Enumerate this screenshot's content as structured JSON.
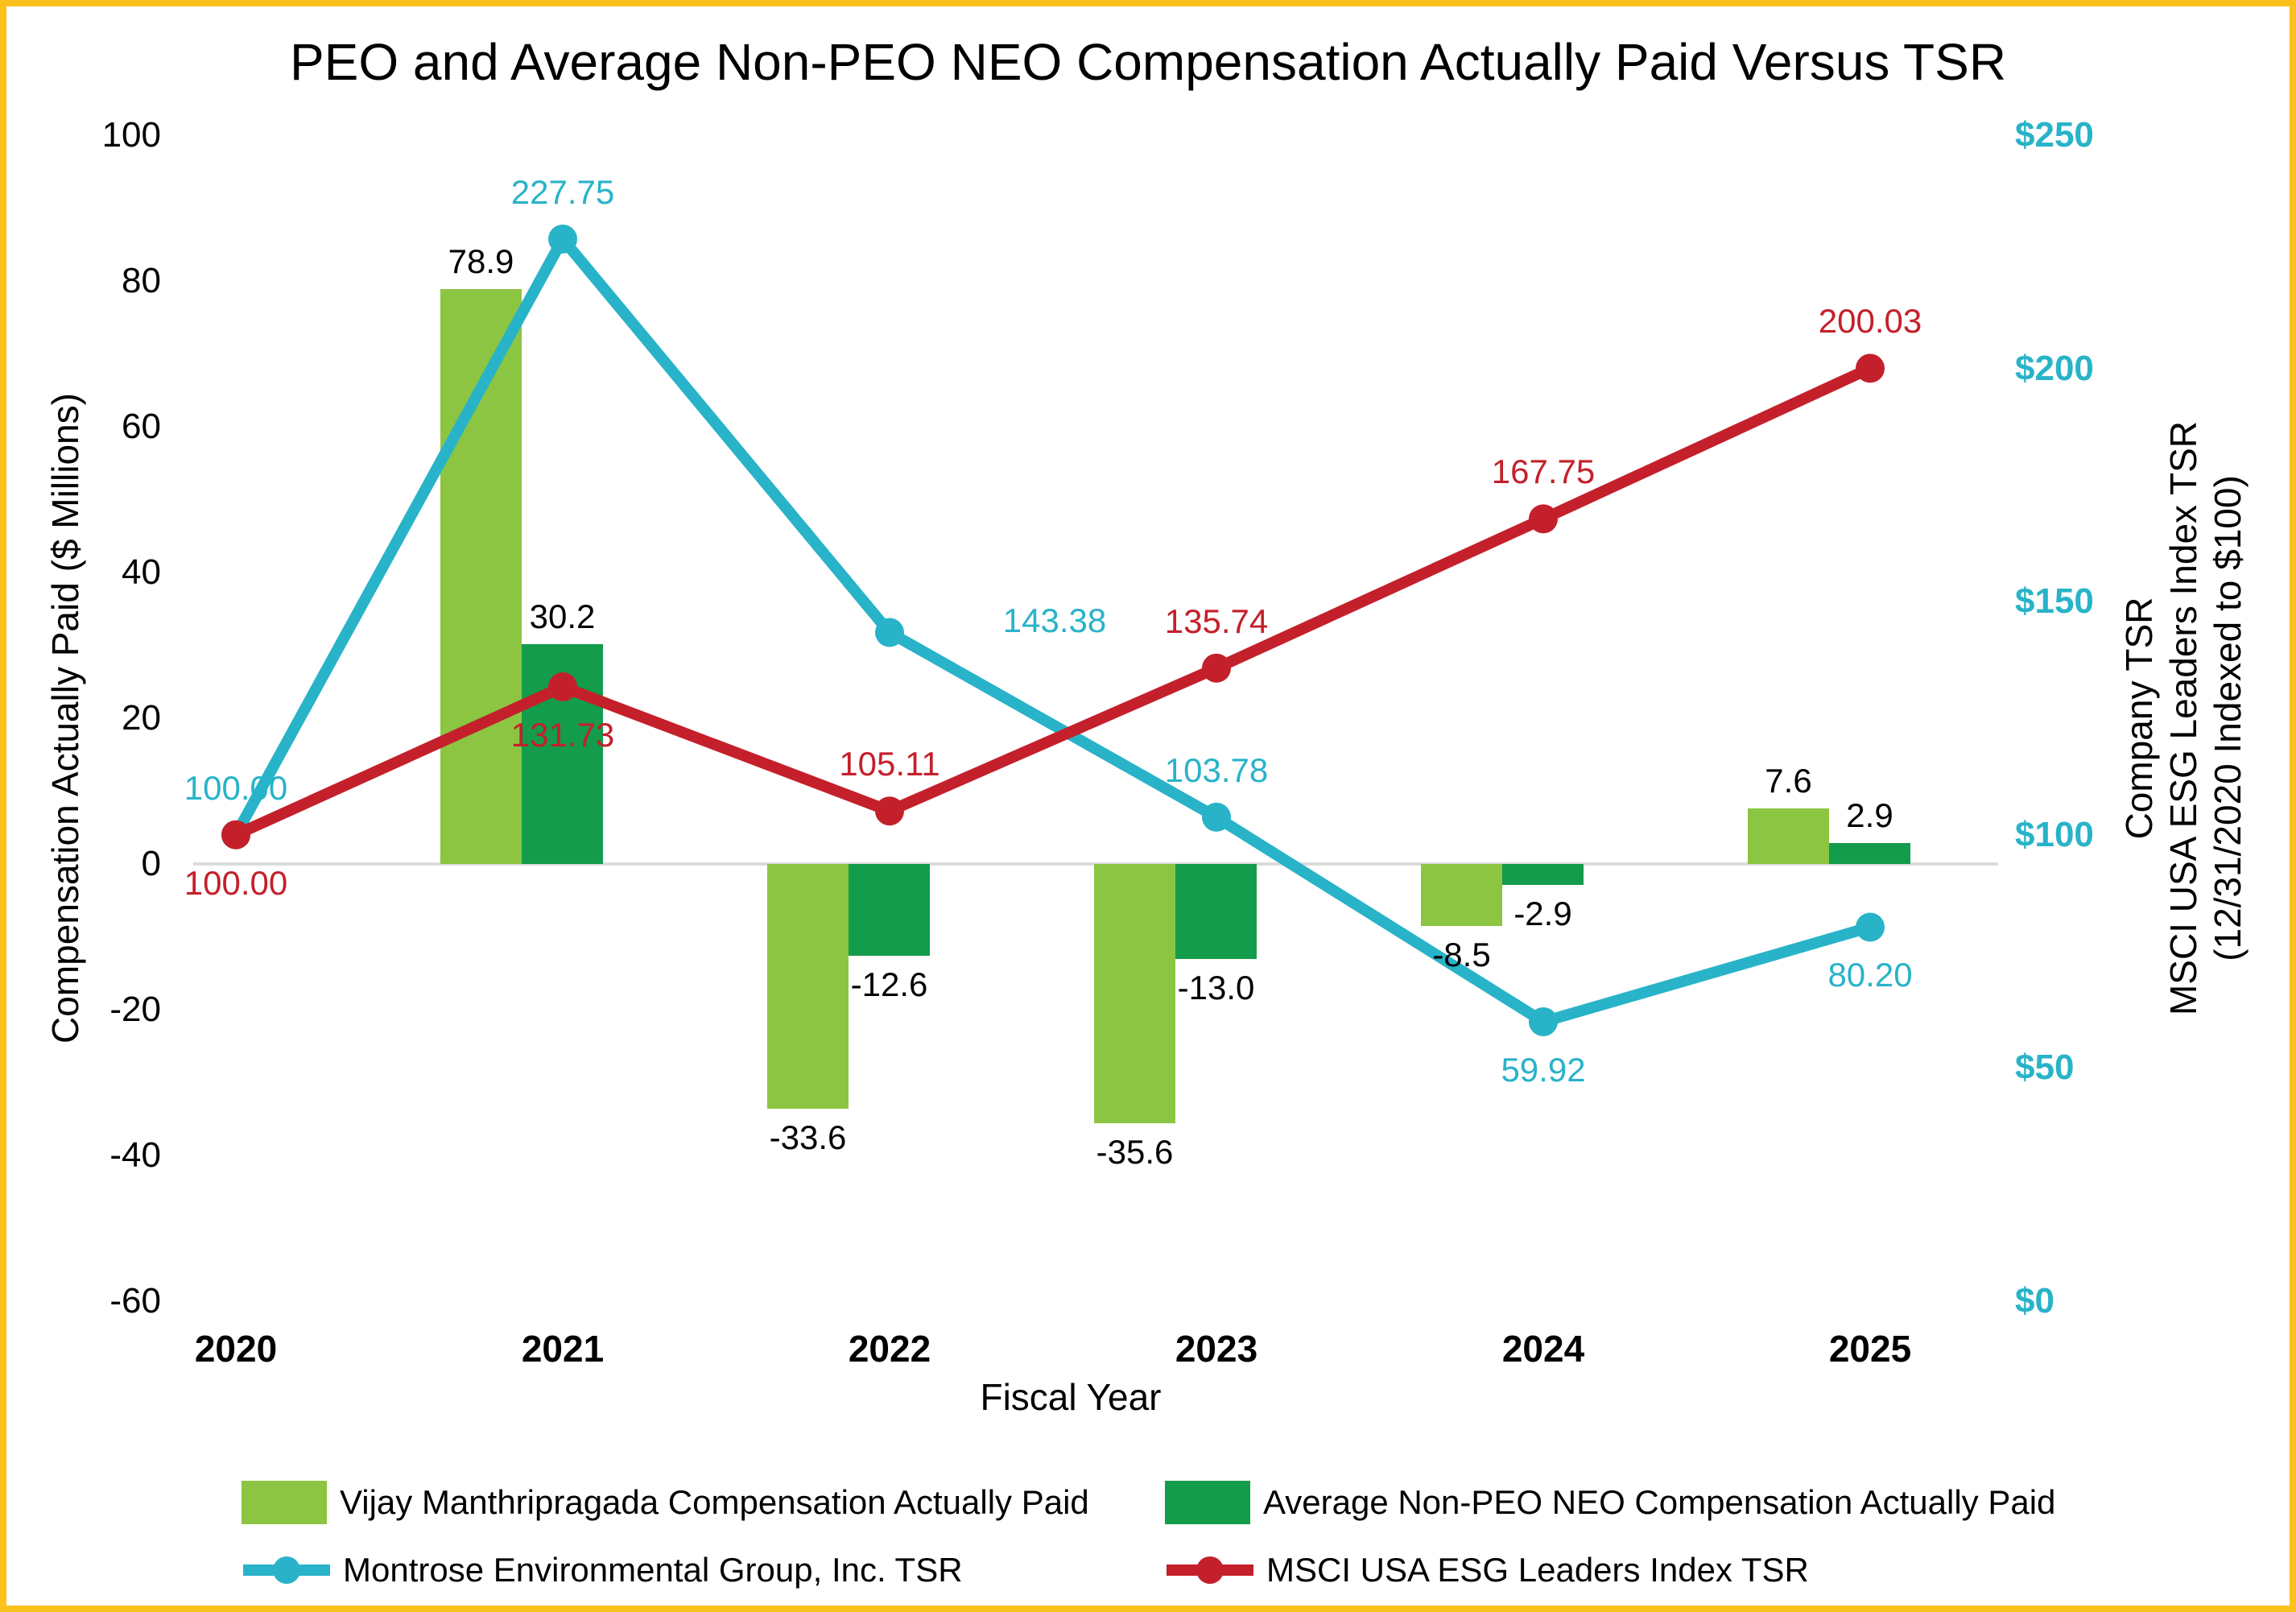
{
  "title": "PEO and Average Non-PEO NEO Compensation Actually Paid Versus TSR",
  "colors": {
    "peo_bar": "#8BC542",
    "neo_bar": "#139C4B",
    "company_tsr_line": "#28B3C9",
    "index_tsr_line": "#C4202B",
    "border": "#FBC21D",
    "gridline": "#DCDCDC",
    "right_axis_text": "#28B3C9",
    "text": "#000000"
  },
  "chart_data": {
    "type": "bar",
    "subtype": "clustered bars with two overlay lines (combo chart, secondary axis)",
    "categories": [
      "2020",
      "2021",
      "2022",
      "2023",
      "2024",
      "2025"
    ],
    "title": "PEO and Average Non-PEO NEO Compensation Actually Paid Versus TSR",
    "xlabel": "Fiscal Year",
    "left_axis": {
      "label": "Compensation Actually Paid ($ Millions)",
      "min": -60,
      "max": 100,
      "ticks": [
        "100",
        "80",
        "60",
        "40",
        "20",
        "0",
        "-20",
        "-40",
        "-60"
      ],
      "tick_values": [
        100,
        80,
        60,
        40,
        20,
        0,
        -20,
        -40,
        -60
      ]
    },
    "right_axis": {
      "label_lines": [
        "Company TSR",
        "MSCI USA ESG Leaders Index TSR",
        "(12/31/2020 Indexed to $100)"
      ],
      "min": 0,
      "max": 250,
      "ticks": [
        "$250",
        "$200",
        "$150",
        "$100",
        "$50",
        "$0"
      ],
      "tick_values": [
        250,
        200,
        150,
        100,
        50,
        0
      ]
    },
    "grid": "horizontal zero line only",
    "legend_position": "bottom, two columns, two rows",
    "series": [
      {
        "name": "Vijay Manthripragada Compensation Actually Paid",
        "type": "bar",
        "axis": "left",
        "color": "#8BC542",
        "values": [
          null,
          78.9,
          -33.6,
          -35.6,
          -8.5,
          7.6
        ],
        "labels": [
          "",
          "78.9",
          "-33.6",
          "-35.6",
          "-8.5",
          "7.6"
        ]
      },
      {
        "name": "Average Non-PEO NEO Compensation Actually Paid",
        "type": "bar",
        "axis": "left",
        "color": "#139C4B",
        "values": [
          null,
          30.2,
          -12.6,
          -13.0,
          -2.9,
          2.9
        ],
        "labels": [
          "",
          "30.2",
          "-12.6",
          "-13.0",
          "-2.9",
          "2.9"
        ]
      },
      {
        "name": "Montrose Environmental Group, Inc. TSR",
        "type": "line",
        "axis": "right",
        "color": "#28B3C9",
        "values": [
          100.0,
          227.75,
          143.38,
          103.78,
          59.92,
          80.2
        ],
        "labels": [
          "100.00",
          "227.75",
          "143.38",
          "103.78",
          "59.92",
          "80.20"
        ],
        "label_placement": [
          "above",
          "above",
          "right",
          "above",
          "below",
          "below"
        ]
      },
      {
        "name": "MSCI USA ESG Leaders Index TSR",
        "type": "line",
        "axis": "right",
        "color": "#C4202B",
        "values": [
          100.0,
          131.73,
          105.11,
          135.74,
          167.75,
          200.03
        ],
        "labels": [
          "100.00",
          "131.73",
          "105.11",
          "135.74",
          "167.75",
          "200.03"
        ],
        "label_placement": [
          "below",
          "below",
          "above",
          "above",
          "above",
          "above"
        ]
      }
    ]
  }
}
